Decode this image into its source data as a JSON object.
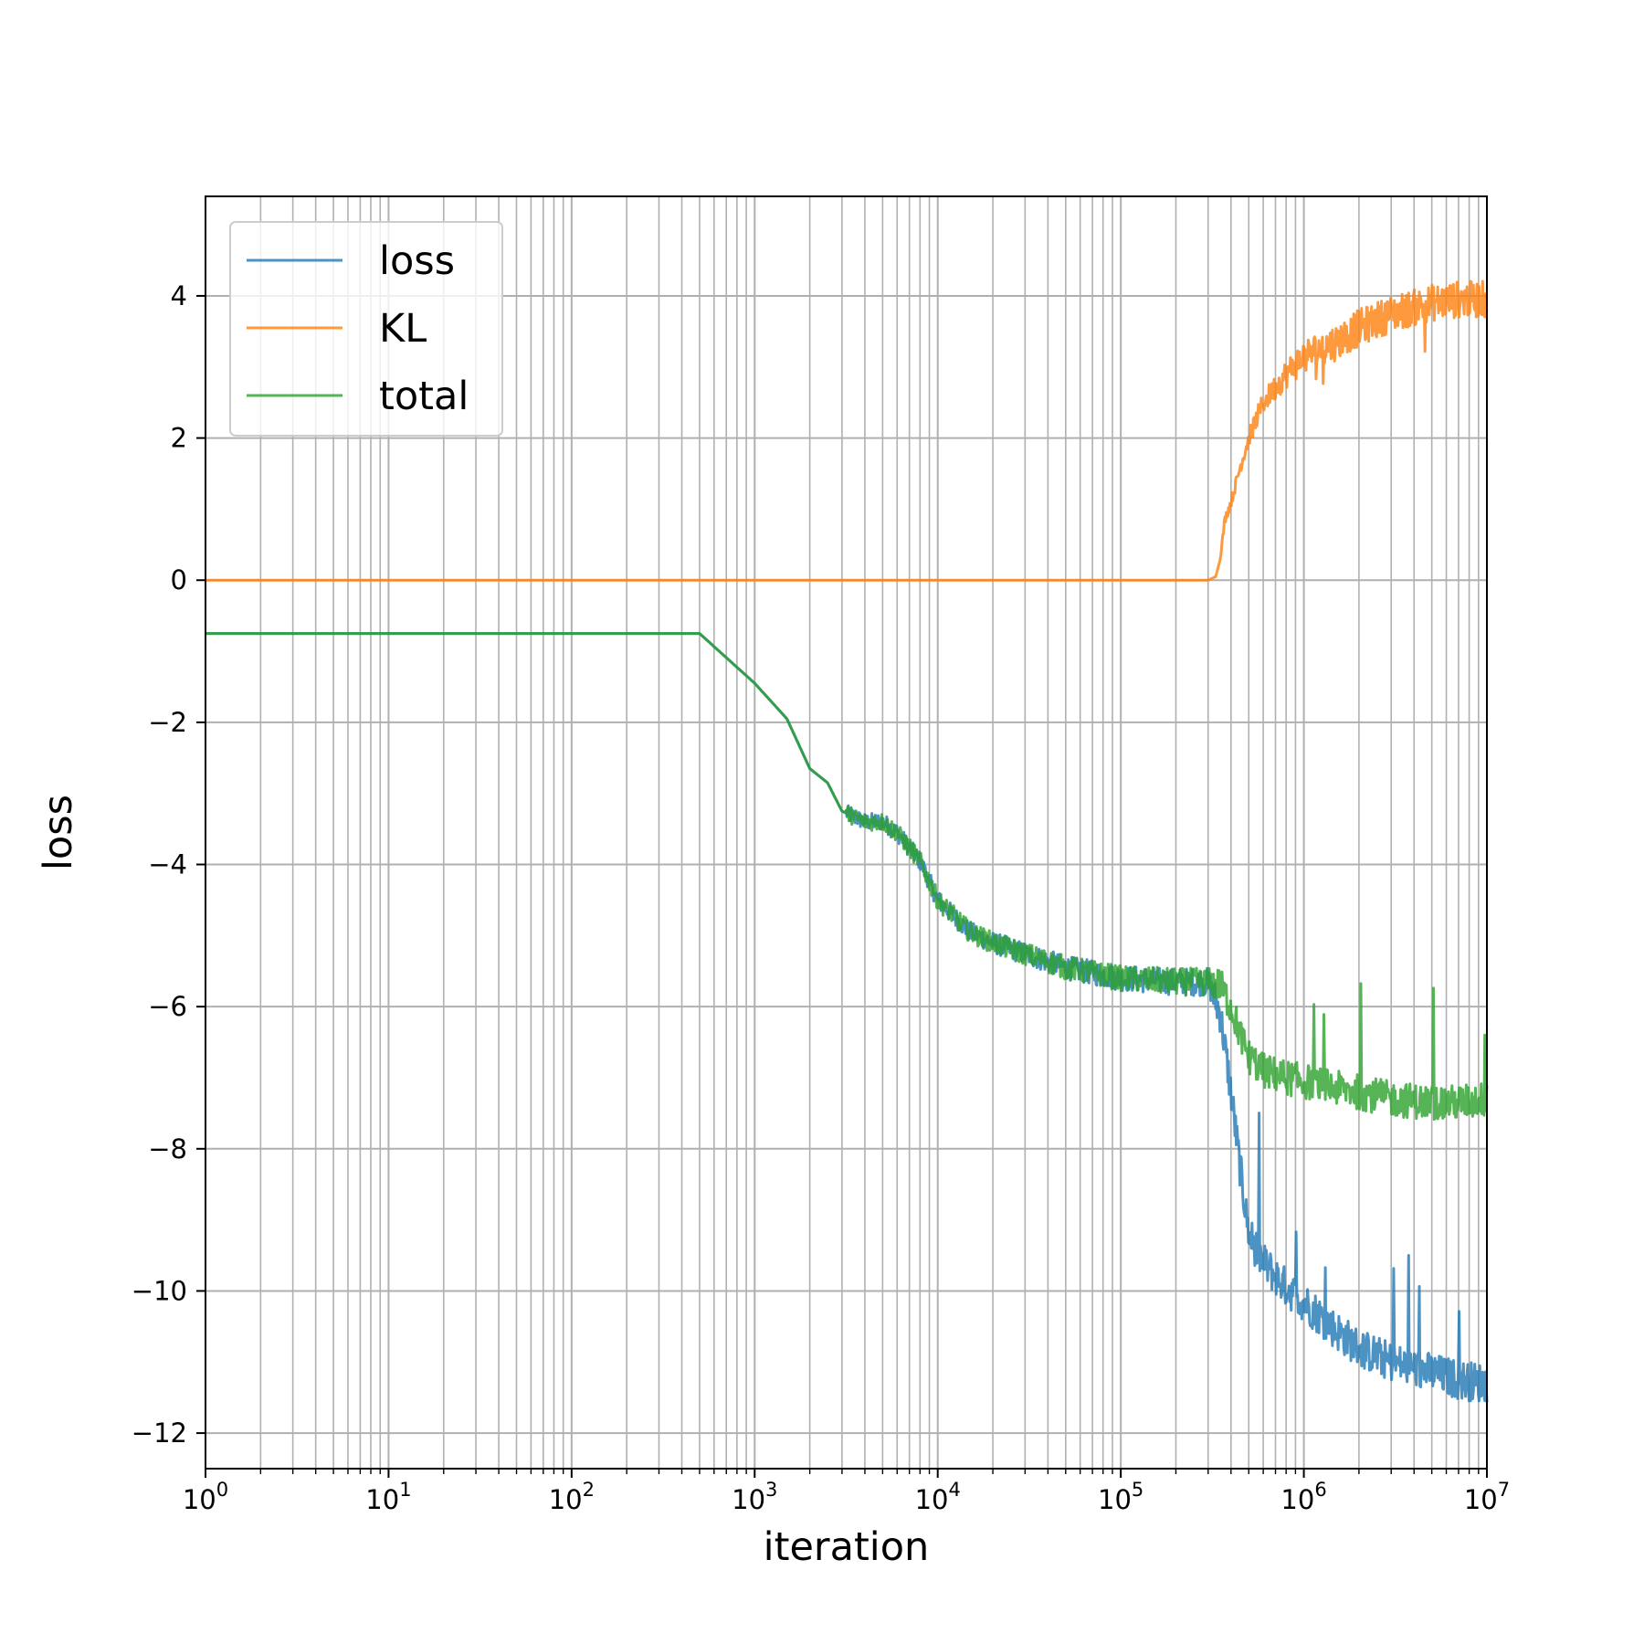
{
  "chart_data": {
    "type": "line",
    "title": "",
    "xlabel": "iteration",
    "ylabel": "loss",
    "xscale": "log",
    "xlim": [
      1,
      10000000
    ],
    "ylim": [
      -12.5,
      5.4
    ],
    "grid": true,
    "grid_minor_x": true,
    "legend_position": "upper-left",
    "x_ticks": [
      {
        "base": "10",
        "exp": "0"
      },
      {
        "base": "10",
        "exp": "1"
      },
      {
        "base": "10",
        "exp": "2"
      },
      {
        "base": "10",
        "exp": "3"
      },
      {
        "base": "10",
        "exp": "4"
      },
      {
        "base": "10",
        "exp": "5"
      },
      {
        "base": "10",
        "exp": "6"
      },
      {
        "base": "10",
        "exp": "7"
      }
    ],
    "y_ticks": [
      {
        "value": 4,
        "label": "4"
      },
      {
        "value": 2,
        "label": "2"
      },
      {
        "value": 0,
        "label": "0"
      },
      {
        "value": -2,
        "label": "−2"
      },
      {
        "value": -4,
        "label": "−4"
      },
      {
        "value": -6,
        "label": "−6"
      },
      {
        "value": -8,
        "label": "−8"
      },
      {
        "value": -10,
        "label": "−10"
      },
      {
        "value": -12,
        "label": "−12"
      }
    ],
    "series": [
      {
        "name": "loss",
        "color": "#1f77b4",
        "x": [
          1,
          500,
          1000,
          1500,
          2000,
          2500,
          3000,
          4000,
          5000,
          6000,
          8000,
          10000,
          15000,
          20000,
          50000,
          100000,
          200000,
          300000,
          350000,
          400000,
          450000,
          500000,
          600000,
          800000,
          1000000,
          1500000,
          2000000,
          3000000,
          5000000,
          7000000,
          10000000
        ],
        "y": [
          -0.75,
          -0.75,
          -1.45,
          -1.95,
          -2.65,
          -2.85,
          -3.25,
          -3.4,
          -3.4,
          -3.55,
          -3.95,
          -4.5,
          -4.95,
          -5.1,
          -5.45,
          -5.6,
          -5.65,
          -5.65,
          -6.1,
          -7.2,
          -8.3,
          -9.2,
          -9.6,
          -9.95,
          -10.15,
          -10.55,
          -10.8,
          -11.0,
          -11.15,
          -11.25,
          -11.3
        ]
      },
      {
        "name": "KL",
        "color": "#ff7f0e",
        "x": [
          1,
          100000,
          300000,
          330000,
          350000,
          370000,
          400000,
          450000,
          500000,
          600000,
          800000,
          1000000,
          1500000,
          2000000,
          3000000,
          5000000,
          7000000,
          10000000
        ],
        "y": [
          0,
          0,
          0,
          0.05,
          0.3,
          0.85,
          1.1,
          1.6,
          2.0,
          2.5,
          2.9,
          3.15,
          3.35,
          3.55,
          3.75,
          3.9,
          3.95,
          3.95
        ]
      },
      {
        "name": "total",
        "color": "#2ca02c",
        "x": [
          1,
          500,
          1000,
          1500,
          2000,
          2500,
          3000,
          4000,
          5000,
          6000,
          8000,
          10000,
          15000,
          20000,
          50000,
          100000,
          200000,
          300000,
          350000,
          400000,
          450000,
          500000,
          600000,
          800000,
          1000000,
          1500000,
          2000000,
          3000000,
          5000000,
          7000000,
          10000000
        ],
        "y": [
          -0.75,
          -0.75,
          -1.45,
          -1.95,
          -2.65,
          -2.85,
          -3.25,
          -3.4,
          -3.4,
          -3.55,
          -3.95,
          -4.5,
          -4.95,
          -5.1,
          -5.45,
          -5.6,
          -5.65,
          -5.65,
          -5.7,
          -6.0,
          -6.4,
          -6.7,
          -6.9,
          -7.0,
          -7.05,
          -7.15,
          -7.2,
          -7.3,
          -7.35,
          -7.35,
          -7.3
        ]
      }
    ]
  }
}
